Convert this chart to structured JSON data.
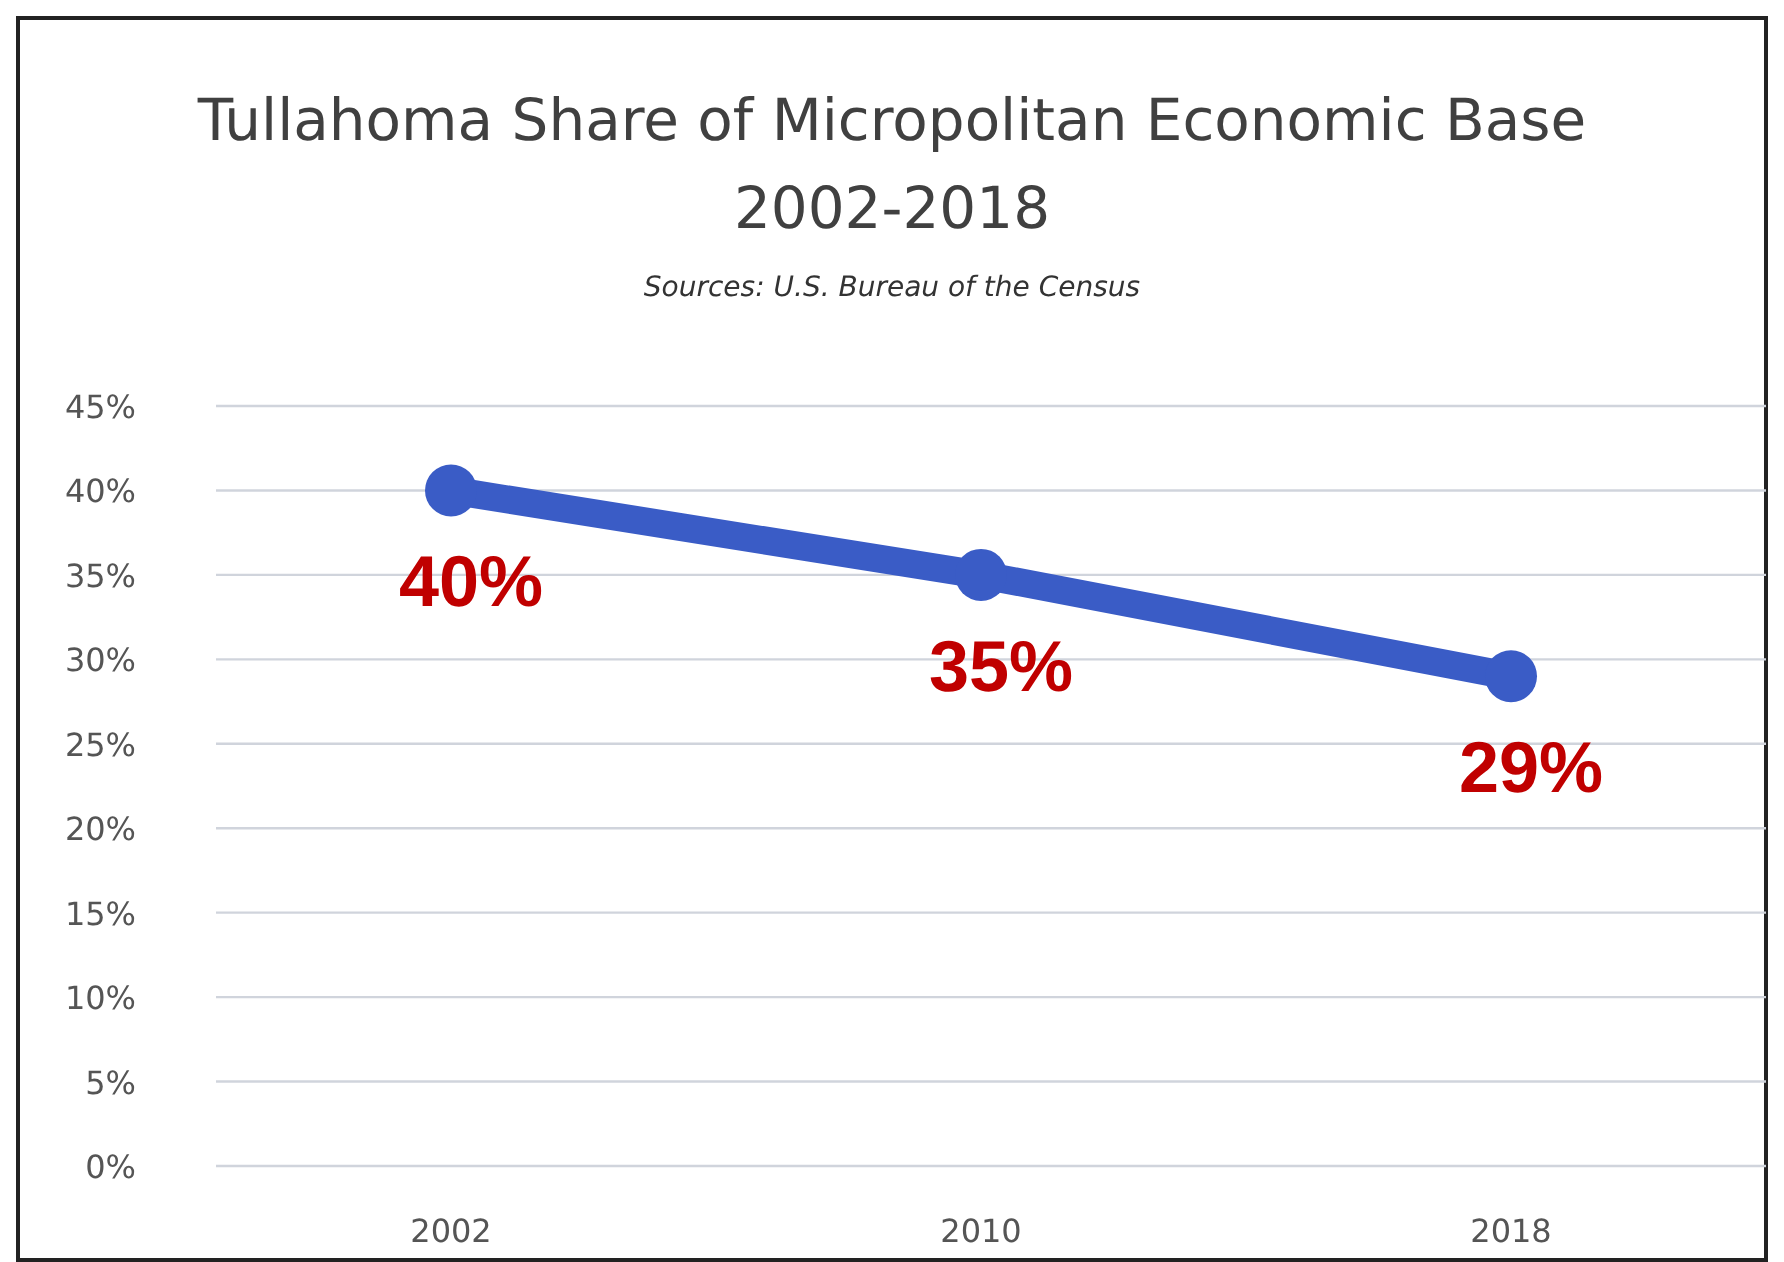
{
  "chart_data": {
    "type": "line",
    "title": "Tullahoma Share of Micropolitan Economic Base",
    "subtitle": "2002-2018",
    "annotations": [
      "Sources: U.S. Bureau of the Census"
    ],
    "categories": [
      "2002",
      "2010",
      "2018"
    ],
    "series": [
      {
        "color": "#3a5cc6",
        "values": [
          40,
          35,
          29
        ],
        "value_labels": [
          "40%",
          "35%",
          "29%"
        ]
      }
    ],
    "ylim": [
      0,
      45
    ],
    "yticks": [
      {
        "value": 0,
        "label": "0%"
      },
      {
        "value": 5,
        "label": "5%"
      },
      {
        "value": 10,
        "label": "10%"
      },
      {
        "value": 15,
        "label": "15%"
      },
      {
        "value": 20,
        "label": "20%"
      },
      {
        "value": 25,
        "label": "25%"
      },
      {
        "value": 30,
        "label": "30%"
      },
      {
        "value": 35,
        "label": "35%"
      },
      {
        "value": 40,
        "label": "40%"
      },
      {
        "value": 45,
        "label": "45%"
      }
    ],
    "grid": "y",
    "marker": "circle",
    "line_style": "solid"
  }
}
